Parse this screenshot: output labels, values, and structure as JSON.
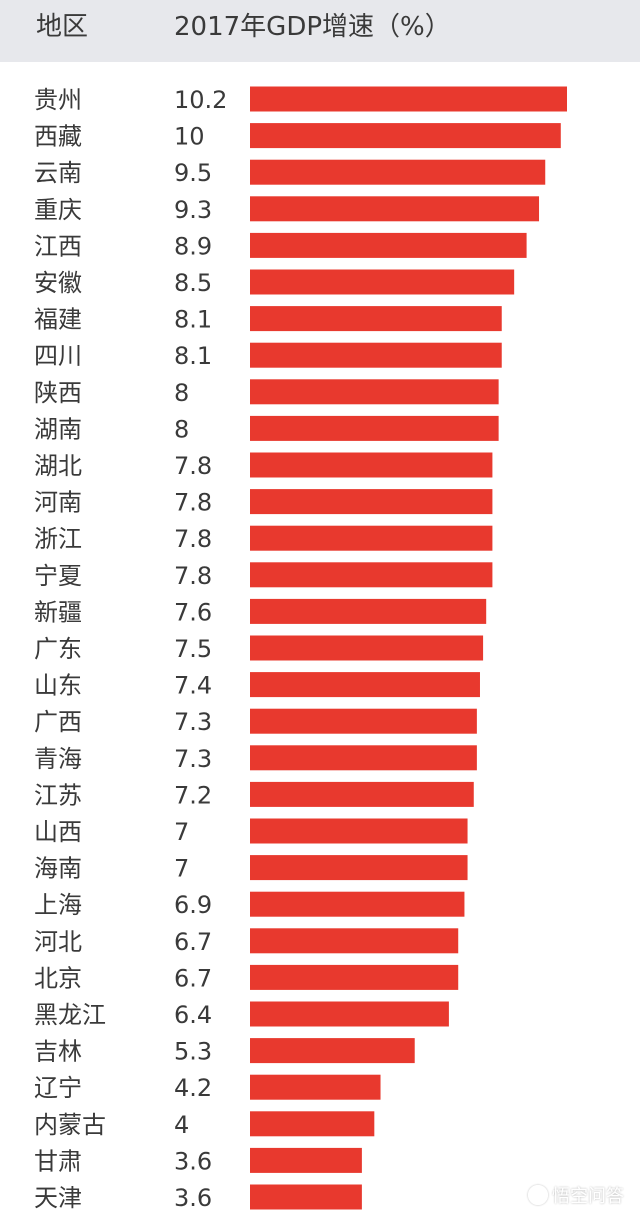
{
  "header": {
    "col_region": "地区",
    "col_growth": "2017年GDP增速（%）"
  },
  "colors": {
    "bar": "#e8392e",
    "text": "#3a3a3a",
    "header_bg": "#e7e8ec"
  },
  "chart_data": {
    "type": "bar",
    "orientation": "horizontal",
    "title": "",
    "xlabel": "2017年GDP增速（%）",
    "ylabel": "地区",
    "xlim": [
      0,
      10.2
    ],
    "grid": false,
    "categories": [
      "贵州",
      "西藏",
      "云南",
      "重庆",
      "江西",
      "安徽",
      "福建",
      "四川",
      "陕西",
      "湖南",
      "湖北",
      "河南",
      "浙江",
      "宁夏",
      "新疆",
      "广东",
      "山东",
      "广西",
      "青海",
      "江苏",
      "山西",
      "海南",
      "上海",
      "河北",
      "北京",
      "黑龙江",
      "吉林",
      "辽宁",
      "内蒙古",
      "甘肃",
      "天津"
    ],
    "values": [
      10.2,
      10,
      9.5,
      9.3,
      8.9,
      8.5,
      8.1,
      8.1,
      8,
      8,
      7.8,
      7.8,
      7.8,
      7.8,
      7.6,
      7.5,
      7.4,
      7.3,
      7.3,
      7.2,
      7,
      7,
      6.9,
      6.7,
      6.7,
      6.4,
      5.3,
      4.2,
      4,
      3.6,
      3.6
    ],
    "value_labels": [
      "10.2",
      "10",
      "9.5",
      "9.3",
      "8.9",
      "8.5",
      "8.1",
      "8.1",
      "8",
      "8",
      "7.8",
      "7.8",
      "7.8",
      "7.8",
      "7.6",
      "7.5",
      "7.4",
      "7.3",
      "7.3",
      "7.2",
      "7",
      "7",
      "6.9",
      "6.7",
      "6.7",
      "6.4",
      "5.3",
      "4.2",
      "4",
      "3.6",
      "3.6"
    ]
  },
  "watermark": {
    "text": "悟空问答",
    "icon": "wukong-logo-icon"
  }
}
